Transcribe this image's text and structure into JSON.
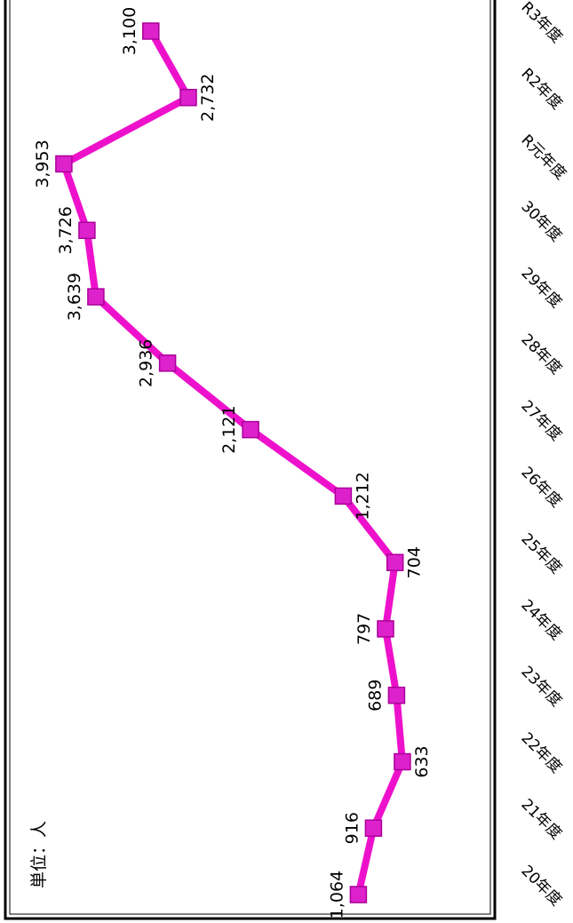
{
  "chart_data": {
    "type": "line",
    "orientation": "rotated-90-clockwise",
    "unit_label": "単位：人",
    "categories": [
      "20年度",
      "21年度",
      "22年度",
      "23年度",
      "24年度",
      "25年度",
      "26年度",
      "27年度",
      "28年度",
      "29年度",
      "30年度",
      "R元年度",
      "R2年度",
      "R3年度"
    ],
    "series": [
      {
        "values": [
          1064,
          916,
          633,
          689,
          797,
          704,
          1212,
          2121,
          2936,
          3639,
          3726,
          3953,
          2732,
          3100
        ],
        "value_labels": [
          "1,064",
          "916",
          "633",
          "689",
          "797",
          "704",
          "1,212",
          "2,121",
          "2,936",
          "3,639",
          "3,726",
          "3,953",
          "2,732",
          "3,100"
        ],
        "color": "#ee11cc",
        "marker_color": "#dd22cc"
      }
    ],
    "grid": false,
    "legend": "none"
  }
}
